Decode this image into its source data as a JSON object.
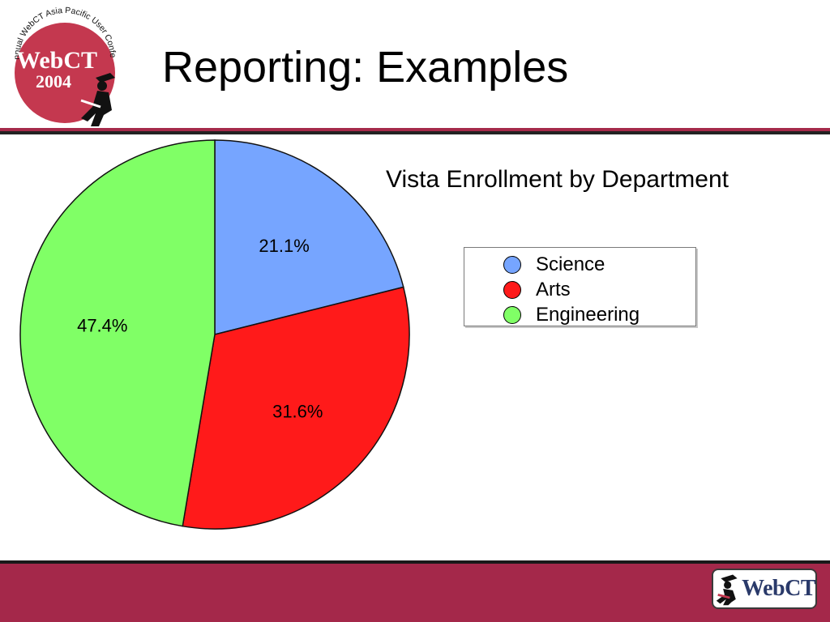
{
  "header": {
    "title": "Reporting: Examples",
    "logo_arc_text": "5th Annual WebCT Asia Pacific User Conference",
    "logo_brand": "WebCT",
    "logo_year": "2004",
    "colors": {
      "brand": "#a52a4a",
      "rule": "#222222"
    }
  },
  "chart_data": {
    "type": "pie",
    "title": "Vista Enrollment by Department",
    "categories": [
      "Science",
      "Arts",
      "Engineering"
    ],
    "values": [
      21.1,
      31.6,
      47.4
    ],
    "labels": [
      "21.1%",
      "31.6%",
      "47.4%"
    ],
    "colors": [
      "#76a5ff",
      "#ff1a1a",
      "#80ff66"
    ],
    "start_angle": "12 o'clock",
    "direction": "clockwise",
    "legend_position": "right",
    "legend": [
      {
        "label": "Science",
        "color": "#76a5ff"
      },
      {
        "label": "Arts",
        "color": "#ff1a1a"
      },
      {
        "label": "Engineering",
        "color": "#80ff66"
      }
    ]
  },
  "footer": {
    "logo_text": "WebCT",
    "background": "#a4284a"
  }
}
